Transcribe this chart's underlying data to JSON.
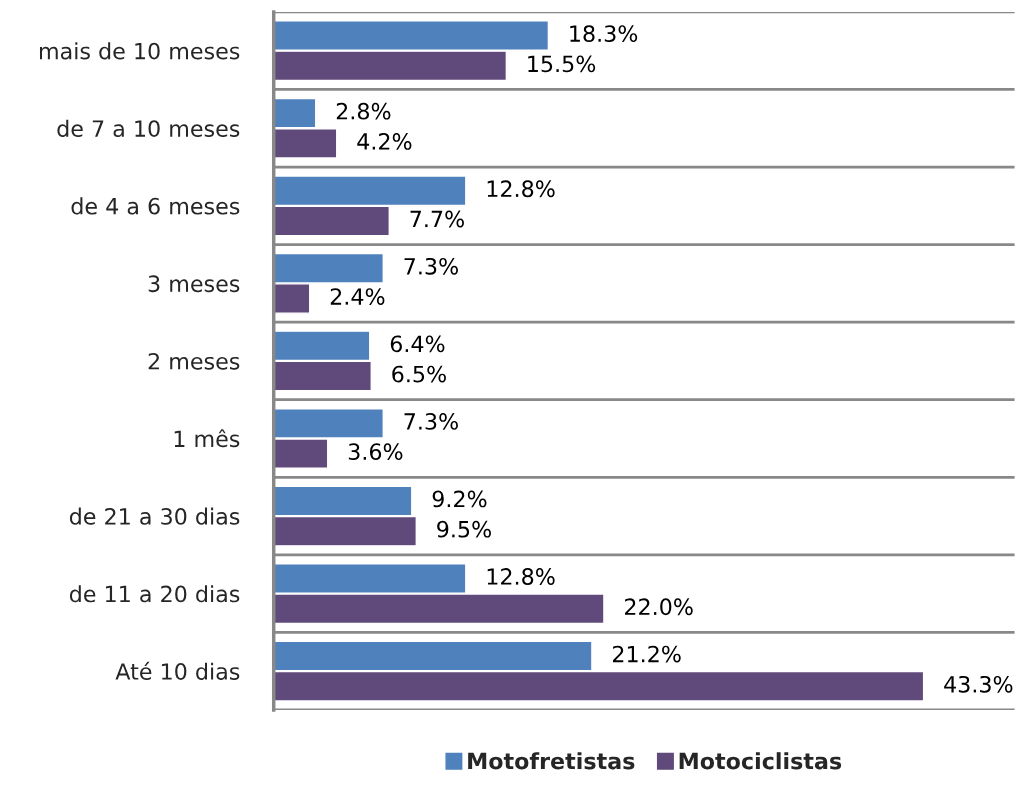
{
  "chart_data": {
    "type": "bar",
    "orientation": "horizontal",
    "grid": "y",
    "legend": "bottom",
    "categories": [
      "mais de 10 meses",
      "de 7 a 10 meses",
      "de 4 a 6 meses",
      "3 meses",
      "2 meses",
      "1 mês",
      "de 21 a 30 dias",
      "de 11 a 20 dias",
      "Até 10 dias"
    ],
    "series": [
      {
        "name": "Motofretistas",
        "color": "#4f81bd",
        "values": [
          18.3,
          2.8,
          12.8,
          7.3,
          6.4,
          7.3,
          9.2,
          12.8,
          21.2
        ],
        "value_labels": [
          "18.3%",
          "2.8%",
          "12.8%",
          "7.3%",
          "6.4%",
          "7.3%",
          "9.2%",
          "12.8%",
          "21.2%"
        ]
      },
      {
        "name": "Motociclistas",
        "color": "#604a7b",
        "values": [
          15.5,
          4.2,
          7.7,
          2.4,
          6.5,
          3.6,
          9.5,
          22.0,
          43.3
        ],
        "value_labels": [
          "15.5%",
          "4.2%",
          "7.7%",
          "2.4%",
          "6.5%",
          "3.6%",
          "9.5%",
          "22.0%",
          "43.3%"
        ]
      }
    ]
  }
}
